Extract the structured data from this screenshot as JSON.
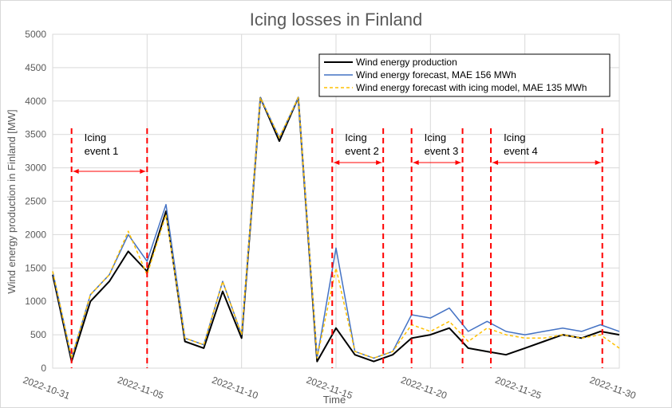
{
  "chart_data": {
    "type": "line",
    "title": "Icing losses in Finland",
    "xlabel": "Time",
    "ylabel": "Wind energy production in Finland [MW]",
    "ylim": [
      0,
      5000
    ],
    "yticks": [
      0,
      500,
      1000,
      1500,
      2000,
      2500,
      3000,
      3500,
      4000,
      4500,
      5000
    ],
    "xlim": [
      "2022-10-31",
      "2022-11-30"
    ],
    "xticks": [
      "2022-10-31",
      "2022-11-05",
      "2022-11-10",
      "2022-11-15",
      "2022-11-20",
      "2022-11-25",
      "2022-11-30"
    ],
    "grid": "both",
    "legend_position": "top-right",
    "series": [
      {
        "name": "Wind energy production",
        "color": "#000000",
        "style": "solid",
        "x": [
          "2022-10-31",
          "2022-11-01",
          "2022-11-02",
          "2022-11-03",
          "2022-11-04",
          "2022-11-05",
          "2022-11-06",
          "2022-11-07",
          "2022-11-08",
          "2022-11-09",
          "2022-11-10",
          "2022-11-11",
          "2022-11-12",
          "2022-11-13",
          "2022-11-14",
          "2022-11-15",
          "2022-11-16",
          "2022-11-17",
          "2022-11-18",
          "2022-11-19",
          "2022-11-20",
          "2022-11-21",
          "2022-11-22",
          "2022-11-23",
          "2022-11-24",
          "2022-11-25",
          "2022-11-26",
          "2022-11-27",
          "2022-11-28",
          "2022-11-29",
          "2022-11-30"
        ],
        "values": [
          1400,
          100,
          1000,
          1300,
          1750,
          1450,
          2350,
          400,
          300,
          1150,
          450,
          4050,
          3400,
          4050,
          100,
          600,
          200,
          100,
          200,
          450,
          500,
          600,
          300,
          250,
          200,
          300,
          400,
          500,
          450,
          550,
          500
        ]
      },
      {
        "name": "Wind energy forecast, MAE 156 MWh",
        "color": "#4472c4",
        "style": "solid",
        "x": [
          "2022-10-31",
          "2022-11-01",
          "2022-11-02",
          "2022-11-03",
          "2022-11-04",
          "2022-11-05",
          "2022-11-06",
          "2022-11-07",
          "2022-11-08",
          "2022-11-09",
          "2022-11-10",
          "2022-11-11",
          "2022-11-12",
          "2022-11-13",
          "2022-11-14",
          "2022-11-15",
          "2022-11-16",
          "2022-11-17",
          "2022-11-18",
          "2022-11-19",
          "2022-11-20",
          "2022-11-21",
          "2022-11-22",
          "2022-11-23",
          "2022-11-24",
          "2022-11-25",
          "2022-11-26",
          "2022-11-27",
          "2022-11-28",
          "2022-11-29",
          "2022-11-30"
        ],
        "values": [
          1450,
          150,
          1100,
          1400,
          2000,
          1600,
          2450,
          450,
          350,
          1300,
          500,
          4050,
          3450,
          4050,
          150,
          1800,
          250,
          150,
          250,
          800,
          750,
          900,
          550,
          700,
          550,
          500,
          550,
          600,
          550,
          650,
          550
        ]
      },
      {
        "name": "Wind energy forecast with icing model, MAE 135 MWh",
        "color": "#ffc000",
        "style": "dashed",
        "x": [
          "2022-10-31",
          "2022-11-01",
          "2022-11-02",
          "2022-11-03",
          "2022-11-04",
          "2022-11-05",
          "2022-11-06",
          "2022-11-07",
          "2022-11-08",
          "2022-11-09",
          "2022-11-10",
          "2022-11-11",
          "2022-11-12",
          "2022-11-13",
          "2022-11-14",
          "2022-11-15",
          "2022-11-16",
          "2022-11-17",
          "2022-11-18",
          "2022-11-19",
          "2022-11-20",
          "2022-11-21",
          "2022-11-22",
          "2022-11-23",
          "2022-11-24",
          "2022-11-25",
          "2022-11-26",
          "2022-11-27",
          "2022-11-28",
          "2022-11-29",
          "2022-11-30"
        ],
        "values": [
          1450,
          150,
          1100,
          1400,
          2050,
          1400,
          2300,
          450,
          350,
          1300,
          500,
          4050,
          3450,
          4050,
          150,
          1500,
          250,
          150,
          250,
          650,
          550,
          700,
          400,
          600,
          500,
          450,
          450,
          500,
          450,
          500,
          300
        ]
      }
    ],
    "annotations": [
      {
        "label": "Icing event 1",
        "start": "2022-11-01",
        "end": "2022-11-05",
        "color": "#ff0000"
      },
      {
        "label": "Icing event 2",
        "start": "2022-11-14.8",
        "end": "2022-11-17.5",
        "color": "#ff0000"
      },
      {
        "label": "Icing event 3",
        "start": "2022-11-19",
        "end": "2022-11-21.7",
        "color": "#ff0000"
      },
      {
        "label": "Icing event 4",
        "start": "2022-11-23.2",
        "end": "2022-11-29.1",
        "color": "#ff0000"
      }
    ]
  }
}
